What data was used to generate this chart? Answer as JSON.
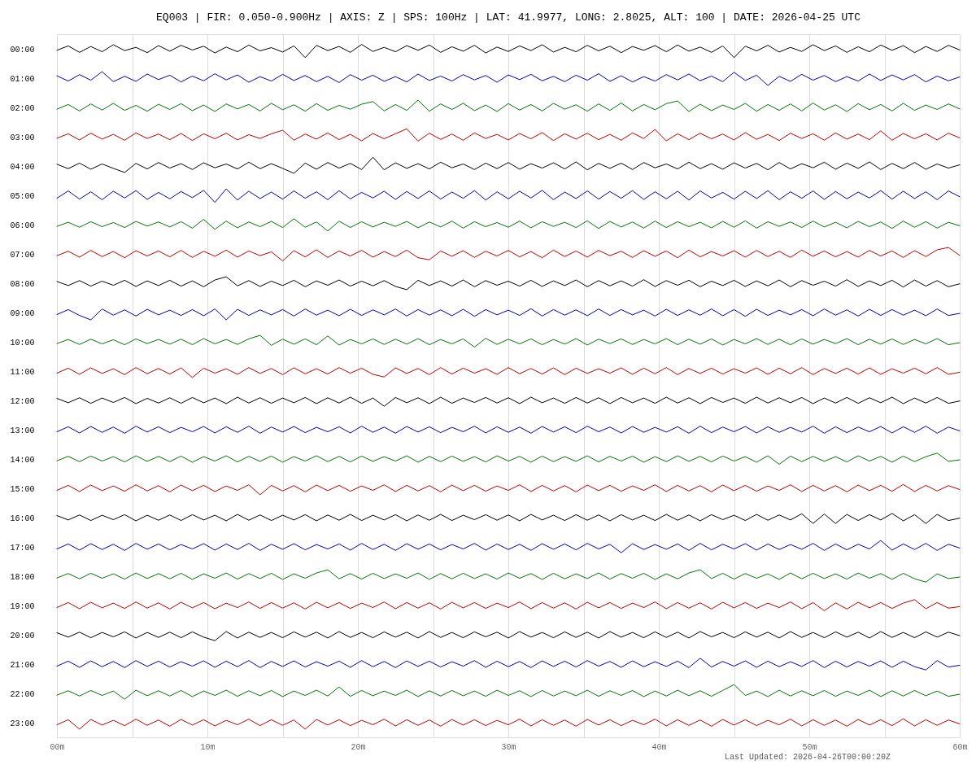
{
  "chart_data": {
    "type": "line",
    "title": "EQ003 | FIR: 0.050-0.900Hz | AXIS: Z | SPS: 100Hz | LAT: 41.9977, LONG: 2.8025, ALT: 100 | DATE: 2026-04-25 UTC",
    "annotations": [
      "Last Updated: 2026-04-26T00:00:20Z"
    ],
    "xlim": [
      0,
      60
    ],
    "xticks": [
      {
        "value": 0,
        "label": "00m"
      },
      {
        "value": 5,
        "label": null
      },
      {
        "value": 10,
        "label": "10m"
      },
      {
        "value": 15,
        "label": null
      },
      {
        "value": 20,
        "label": "20m"
      },
      {
        "value": 25,
        "label": null
      },
      {
        "value": 30,
        "label": "30m"
      },
      {
        "value": 35,
        "label": null
      },
      {
        "value": 40,
        "label": "40m"
      },
      {
        "value": 45,
        "label": null
      },
      {
        "value": 50,
        "label": "50m"
      },
      {
        "value": 55,
        "label": null
      },
      {
        "value": 60,
        "label": "60m"
      }
    ],
    "ylim": [
      23.5,
      -0.5
    ],
    "yticks": [
      {
        "value": 0,
        "label": "00:00"
      },
      {
        "value": 1,
        "label": "01:00"
      },
      {
        "value": 2,
        "label": "02:00"
      },
      {
        "value": 3,
        "label": "03:00"
      },
      {
        "value": 4,
        "label": "04:00"
      },
      {
        "value": 5,
        "label": "05:00"
      },
      {
        "value": 6,
        "label": "06:00"
      },
      {
        "value": 7,
        "label": "07:00"
      },
      {
        "value": 8,
        "label": "08:00"
      },
      {
        "value": 9,
        "label": "09:00"
      },
      {
        "value": 10,
        "label": "10:00"
      },
      {
        "value": 11,
        "label": "11:00"
      },
      {
        "value": 12,
        "label": "12:00"
      },
      {
        "value": 13,
        "label": "13:00"
      },
      {
        "value": 14,
        "label": "14:00"
      },
      {
        "value": 15,
        "label": "15:00"
      },
      {
        "value": 16,
        "label": "16:00"
      },
      {
        "value": 17,
        "label": "17:00"
      },
      {
        "value": 18,
        "label": "18:00"
      },
      {
        "value": 19,
        "label": "19:00"
      },
      {
        "value": 20,
        "label": "20:00"
      },
      {
        "value": 21,
        "label": "21:00"
      },
      {
        "value": 22,
        "label": "22:00"
      },
      {
        "value": 23,
        "label": "23:00"
      }
    ],
    "grid": "x",
    "x": [
      0,
      0.75,
      1.5,
      2.25,
      3,
      3.75,
      4.5,
      5.25,
      6,
      6.75,
      7.5,
      8.25,
      9,
      9.75,
      10.5,
      11.25,
      12,
      12.75,
      13.5,
      14.25,
      15,
      15.75,
      16.5,
      17.25,
      18,
      18.75,
      19.5,
      20.25,
      21,
      21.75,
      22.5,
      23.25,
      24,
      24.75,
      25.5,
      26.25,
      27,
      27.75,
      28.5,
      29.25,
      30,
      30.75,
      31.5,
      32.25,
      33,
      33.75,
      34.5,
      35.25,
      36,
      36.75,
      37.5,
      38.25,
      39,
      39.75,
      40.5,
      41.25,
      42,
      42.75,
      43.5,
      44.25,
      45,
      45.75,
      46.5,
      47.25,
      48,
      48.75,
      49.5,
      50.25,
      51,
      51.75,
      52.5,
      53.25,
      54,
      54.75,
      55.5,
      56.25,
      57,
      57.75,
      58.5,
      59.25,
      60
    ],
    "series": [
      {
        "color": "#000000",
        "values": [
          0.05,
          -0.1,
          0.12,
          -0.08,
          0.1,
          -0.14,
          0.06,
          -0.05,
          0.13,
          -0.11,
          0.08,
          -0.12,
          0.04,
          -0.09,
          0.14,
          -0.06,
          0.1,
          -0.13,
          0.07,
          -0.04,
          0.11,
          -0.1,
          0.3,
          -0.12,
          0.06,
          -0.08,
          0.12,
          -0.15,
          0.09,
          -0.05,
          0.1,
          -0.11,
          0.05,
          -0.13,
          0.12,
          -0.07,
          0.08,
          -0.12,
          0.14,
          -0.06,
          0.09,
          -0.1,
          0.06,
          -0.14,
          0.11,
          -0.05,
          0.1,
          -0.12,
          0.07,
          -0.09,
          0.13,
          -0.08,
          0.05,
          -0.11,
          0.1,
          -0.13,
          0.08,
          -0.06,
          0.12,
          -0.1,
          0.3,
          -0.09,
          0.07,
          -0.12,
          0.11,
          -0.05,
          0.09,
          -0.14,
          0.06,
          -0.1,
          0.12,
          -0.07,
          0.1,
          -0.13,
          0.05,
          -0.11,
          0.13,
          -0.08,
          0.09,
          -0.12,
          0.04
        ]
      },
      {
        "color": "#0000bb",
        "values": [
          0.92,
          1.1,
          0.88,
          1.07,
          0.78,
          1.12,
          0.94,
          1.11,
          0.86,
          1.05,
          0.9,
          1.13,
          0.93,
          1.09,
          0.85,
          1.06,
          0.89,
          1.14,
          0.95,
          1.1,
          0.87,
          1.08,
          0.91,
          1.12,
          0.94,
          1.15,
          0.88,
          1.07,
          0.9,
          1.11,
          0.95,
          1.13,
          0.86,
          1.08,
          0.93,
          1.1,
          0.88,
          1.06,
          0.91,
          1.14,
          0.89,
          1.05,
          0.87,
          1.09,
          0.94,
          1.12,
          0.9,
          1.07,
          0.85,
          1.11,
          0.92,
          1.13,
          0.95,
          1.1,
          0.88,
          1.06,
          0.86,
          1.09,
          0.93,
          1.12,
          0.8,
          1.08,
          0.9,
          1.25,
          0.94,
          1.11,
          0.87,
          1.07,
          0.91,
          1.12,
          0.95,
          1.1,
          0.86,
          1.08,
          0.89,
          1.06,
          0.88,
          1.13,
          0.93,
          1.09,
          0.96
        ]
      },
      {
        "color": "#007700",
        "values": [
          2.06,
          1.9,
          2.12,
          1.88,
          2.09,
          1.86,
          2.1,
          1.93,
          2.13,
          1.89,
          2.07,
          1.87,
          2.11,
          1.92,
          2.14,
          1.88,
          2.05,
          1.9,
          2.12,
          1.86,
          2.08,
          1.91,
          2.13,
          1.87,
          2.1,
          1.93,
          2.06,
          1.89,
          1.8,
          2.12,
          1.9,
          2.1,
          1.75,
          2.13,
          1.88,
          2.07,
          1.86,
          2.11,
          1.92,
          2.14,
          1.87,
          2.09,
          1.9,
          2.12,
          1.86,
          2.06,
          1.91,
          2.13,
          1.88,
          2.1,
          1.85,
          2.12,
          1.9,
          2.08,
          1.87,
          1.78,
          2.14,
          1.89,
          2.11,
          1.92,
          2.07,
          1.86,
          2.13,
          1.9,
          2.1,
          1.88,
          2.12,
          1.85,
          2.09,
          1.91,
          2.14,
          1.87,
          2.08,
          1.9,
          2.12,
          1.86,
          2.1,
          1.92,
          2.07,
          1.88,
          2.05
        ]
      },
      {
        "color": "#bb0000",
        "values": [
          3.05,
          2.9,
          3.11,
          2.88,
          3.08,
          2.92,
          3.12,
          2.87,
          3.06,
          2.91,
          3.1,
          2.89,
          3.13,
          2.9,
          3.07,
          2.88,
          3.11,
          2.93,
          3.06,
          2.9,
          2.78,
          3.12,
          2.91,
          3.08,
          2.87,
          3.1,
          2.92,
          3.14,
          2.89,
          3.07,
          2.9,
          2.73,
          3.15,
          2.88,
          3.09,
          2.91,
          3.12,
          2.87,
          3.06,
          2.92,
          3.11,
          2.89,
          3.07,
          2.86,
          3.13,
          2.9,
          3.08,
          2.88,
          3.1,
          2.92,
          3.12,
          2.87,
          3.06,
          2.75,
          3.14,
          2.9,
          3.1,
          2.88,
          3.07,
          2.91,
          3.11,
          2.86,
          3.09,
          2.92,
          3.13,
          2.88,
          3.06,
          2.9,
          3.12,
          2.87,
          3.08,
          2.91,
          3.1,
          2.8,
          3.12,
          2.89,
          3.07,
          2.9,
          3.11,
          2.88,
          3.04
        ]
      },
      {
        "color": "#000000",
        "values": [
          3.94,
          4.09,
          3.9,
          4.11,
          3.93,
          4.08,
          4.22,
          3.91,
          4.1,
          3.88,
          4.07,
          3.92,
          4.12,
          3.89,
          4.06,
          3.93,
          4.1,
          3.87,
          4.09,
          3.92,
          4.08,
          4.25,
          3.9,
          4.11,
          3.88,
          4.07,
          3.91,
          4.12,
          3.7,
          4.13,
          3.89,
          4.08,
          3.92,
          4.1,
          3.87,
          4.06,
          3.93,
          4.12,
          3.9,
          4.09,
          3.88,
          4.11,
          3.92,
          4.07,
          3.89,
          4.1,
          3.86,
          4.13,
          3.91,
          4.08,
          3.9,
          4.12,
          3.88,
          4.06,
          3.93,
          4.1,
          3.87,
          4.09,
          3.92,
          4.11,
          3.89,
          4.07,
          3.91,
          4.13,
          3.88,
          4.1,
          3.92,
          4.06,
          3.87,
          4.11,
          3.9,
          4.08,
          3.86,
          4.12,
          3.91,
          4.09,
          3.88,
          4.11,
          3.93,
          4.07,
          3.96
        ]
      },
      {
        "color": "#0000bb",
        "values": [
          5.1,
          4.85,
          5.13,
          4.88,
          5.15,
          4.86,
          5.09,
          4.84,
          5.14,
          4.9,
          5.12,
          4.87,
          5.08,
          4.83,
          5.24,
          4.78,
          5.16,
          4.86,
          5.11,
          4.89,
          5.13,
          4.85,
          5.1,
          4.88,
          5.15,
          4.84,
          5.12,
          4.9,
          5.09,
          4.86,
          5.14,
          4.87,
          5.11,
          4.85,
          5.13,
          4.89,
          5.1,
          4.84,
          5.16,
          4.88,
          5.12,
          4.86,
          5.09,
          4.83,
          5.15,
          4.89,
          5.11,
          4.85,
          5.13,
          4.87,
          5.1,
          4.84,
          5.14,
          4.88,
          5.12,
          4.86,
          5.16,
          4.85,
          5.09,
          4.9,
          5.13,
          4.86,
          5.11,
          4.84,
          5.15,
          4.88,
          5.1,
          4.85,
          5.14,
          4.87,
          5.12,
          4.89,
          5.09,
          4.84,
          5.13,
          4.86,
          5.11,
          4.88,
          5.15,
          4.85,
          5.05
        ]
      },
      {
        "color": "#007700",
        "values": [
          6.06,
          5.92,
          6.09,
          5.9,
          6.07,
          5.93,
          6.1,
          5.89,
          6.05,
          5.91,
          6.08,
          5.9,
          6.12,
          5.82,
          6.16,
          5.88,
          6.11,
          5.91,
          6.07,
          5.89,
          6.1,
          5.8,
          6.09,
          5.91,
          6.22,
          5.88,
          6.1,
          5.9,
          6.08,
          5.92,
          6.06,
          5.89,
          6.11,
          5.91,
          6.08,
          5.88,
          6.12,
          5.9,
          6.07,
          5.93,
          6.09,
          5.88,
          6.11,
          5.9,
          6.06,
          5.92,
          6.1,
          5.87,
          6.13,
          5.89,
          6.08,
          5.91,
          6.12,
          5.88,
          6.1,
          5.9,
          6.07,
          5.92,
          6.11,
          5.89,
          6.09,
          5.87,
          6.12,
          5.9,
          6.06,
          5.91,
          6.1,
          5.88,
          6.08,
          5.92,
          6.11,
          5.89,
          6.07,
          5.91,
          6.13,
          5.88,
          6.09,
          5.9,
          6.12,
          5.92,
          6.04
        ]
      },
      {
        "color": "#bb0000",
        "values": [
          7.06,
          6.91,
          7.11,
          6.88,
          7.09,
          6.92,
          7.13,
          6.89,
          7.07,
          6.9,
          7.1,
          6.88,
          7.12,
          6.91,
          7.08,
          6.87,
          7.11,
          6.9,
          7.06,
          6.93,
          7.24,
          6.89,
          7.1,
          6.86,
          7.12,
          6.9,
          7.07,
          6.88,
          7.11,
          6.92,
          7.09,
          6.87,
          7.13,
          7.2,
          6.9,
          7.08,
          6.89,
          7.12,
          6.91,
          7.07,
          6.88,
          7.1,
          6.92,
          7.13,
          6.87,
          7.09,
          6.9,
          7.11,
          6.88,
          7.06,
          6.91,
          7.12,
          6.89,
          7.08,
          6.9,
          7.13,
          6.87,
          7.1,
          6.92,
          7.07,
          6.89,
          7.11,
          6.88,
          7.09,
          6.91,
          7.12,
          6.87,
          7.08,
          6.9,
          7.1,
          6.92,
          7.11,
          6.88,
          7.07,
          6.9,
          7.12,
          6.89,
          7.09,
          6.86,
          6.78,
          7.05
        ]
      },
      {
        "color": "#000000",
        "values": [
          7.94,
          8.08,
          7.91,
          8.1,
          7.93,
          8.07,
          7.9,
          8.11,
          7.92,
          8.08,
          7.9,
          8.1,
          7.92,
          8.12,
          7.89,
          7.78,
          8.09,
          7.91,
          8.11,
          7.93,
          8.08,
          7.9,
          8.12,
          7.92,
          8.07,
          7.89,
          8.1,
          7.93,
          8.09,
          7.91,
          8.11,
          8.22,
          7.9,
          8.08,
          7.92,
          8.1,
          7.89,
          8.12,
          7.91,
          8.07,
          7.93,
          8.1,
          7.9,
          8.11,
          7.92,
          8.08,
          7.89,
          8.12,
          7.91,
          8.09,
          7.92,
          8.1,
          7.88,
          8.11,
          7.91,
          8.07,
          7.9,
          8.12,
          7.93,
          8.08,
          7.9,
          8.11,
          7.92,
          8.09,
          7.89,
          8.12,
          7.91,
          8.07,
          7.93,
          8.1,
          7.88,
          8.11,
          7.92,
          8.08,
          7.9,
          8.13,
          7.89,
          8.1,
          7.91,
          8.12,
          8.02
        ]
      },
      {
        "color": "#0000bb",
        "values": [
          9.07,
          8.9,
          9.1,
          9.25,
          8.88,
          9.09,
          8.91,
          9.12,
          8.89,
          9.08,
          8.92,
          9.1,
          8.9,
          9.11,
          8.88,
          9.25,
          8.89,
          9.1,
          8.91,
          9.08,
          8.9,
          9.12,
          8.88,
          9.09,
          8.92,
          9.11,
          8.89,
          9.1,
          8.91,
          9.08,
          8.88,
          9.12,
          8.9,
          9.09,
          8.91,
          9.11,
          8.89,
          9.13,
          8.9,
          9.08,
          8.92,
          9.1,
          8.87,
          9.12,
          8.9,
          9.09,
          8.91,
          9.11,
          8.88,
          9.1,
          8.9,
          9.08,
          8.92,
          9.12,
          8.89,
          9.1,
          8.91,
          9.09,
          8.88,
          9.11,
          8.9,
          9.13,
          8.89,
          9.1,
          8.92,
          9.08,
          8.9,
          9.11,
          8.88,
          9.09,
          8.91,
          9.12,
          8.89,
          9.1,
          8.9,
          9.09,
          8.92,
          9.11,
          8.88,
          9.1,
          9.03
        ]
      },
      {
        "color": "#007700",
        "values": [
          10.06,
          9.92,
          10.09,
          9.91,
          10.07,
          9.93,
          10.1,
          9.9,
          10.06,
          9.92,
          10.08,
          9.91,
          10.1,
          9.89,
          10.07,
          9.92,
          10.09,
          9.9,
          9.78,
          10.12,
          9.91,
          10.08,
          9.9,
          10.1,
          9.8,
          10.11,
          9.92,
          10.07,
          9.9,
          10.09,
          9.91,
          10.08,
          9.89,
          10.1,
          9.92,
          10.07,
          9.9,
          10.18,
          9.88,
          10.09,
          9.91,
          10.07,
          9.9,
          10.1,
          9.92,
          10.08,
          9.89,
          10.11,
          9.91,
          10.06,
          9.9,
          10.09,
          9.92,
          10.07,
          9.89,
          10.1,
          9.91,
          10.08,
          9.9,
          10.11,
          9.92,
          10.07,
          9.89,
          10.09,
          9.91,
          10.1,
          9.9,
          10.08,
          9.92,
          10.06,
          9.89,
          10.1,
          9.91,
          10.08,
          9.9,
          10.09,
          9.92,
          10.07,
          9.89,
          10.1,
          10.03
        ]
      },
      {
        "color": "#bb0000",
        "values": [
          11.07,
          10.9,
          11.11,
          10.89,
          11.08,
          10.92,
          11.12,
          10.88,
          11.09,
          10.91,
          11.1,
          10.89,
          11.22,
          10.9,
          11.07,
          10.92,
          11.11,
          10.88,
          11.08,
          10.91,
          11.12,
          10.89,
          11.09,
          10.92,
          11.1,
          10.88,
          11.07,
          10.9,
          11.11,
          11.2,
          10.89,
          11.08,
          10.91,
          11.12,
          10.88,
          11.1,
          10.9,
          11.07,
          10.92,
          11.11,
          10.88,
          11.09,
          10.91,
          11.1,
          10.89,
          11.12,
          10.9,
          11.08,
          10.92,
          11.07,
          10.89,
          11.11,
          10.9,
          11.09,
          10.88,
          11.12,
          10.91,
          11.08,
          10.9,
          11.1,
          10.92,
          11.07,
          10.89,
          11.11,
          10.9,
          11.09,
          10.88,
          11.12,
          10.91,
          11.08,
          10.9,
          11.1,
          10.89,
          11.11,
          10.92,
          11.07,
          10.9,
          11.09,
          10.88,
          11.11,
          11.04
        ]
      },
      {
        "color": "#000000",
        "values": [
          11.93,
          12.08,
          11.91,
          12.1,
          11.92,
          12.07,
          11.9,
          12.11,
          11.93,
          12.09,
          11.91,
          12.1,
          11.9,
          12.08,
          11.92,
          12.11,
          11.89,
          12.09,
          11.91,
          12.1,
          11.92,
          12.08,
          11.9,
          12.11,
          11.91,
          12.09,
          11.89,
          12.1,
          11.92,
          12.2,
          11.9,
          12.08,
          11.91,
          12.11,
          11.89,
          12.1,
          11.92,
          12.07,
          11.9,
          12.09,
          11.91,
          12.11,
          11.89,
          12.08,
          11.92,
          12.1,
          11.9,
          12.09,
          11.91,
          12.11,
          11.9,
          12.08,
          11.92,
          12.1,
          11.89,
          12.09,
          11.91,
          12.11,
          11.9,
          12.07,
          11.92,
          12.1,
          11.89,
          12.09,
          11.91,
          12.08,
          11.9,
          12.11,
          11.92,
          12.09,
          11.9,
          12.1,
          11.91,
          12.08,
          11.89,
          12.11,
          11.92,
          12.09,
          11.9,
          12.1,
          12.02
        ]
      },
      {
        "color": "#0000bb",
        "values": [
          13.07,
          12.9,
          13.11,
          12.89,
          13.09,
          12.91,
          13.12,
          12.88,
          13.08,
          12.9,
          13.1,
          12.92,
          13.07,
          12.89,
          13.11,
          12.9,
          13.09,
          12.88,
          13.12,
          12.91,
          13.08,
          12.89,
          13.1,
          12.92,
          13.07,
          12.9,
          13.11,
          12.88,
          13.09,
          12.91,
          13.12,
          12.89,
          13.08,
          12.9,
          13.1,
          12.92,
          13.07,
          12.88,
          13.11,
          12.9,
          13.09,
          12.91,
          13.12,
          12.89,
          13.08,
          12.9,
          13.1,
          12.88,
          13.07,
          12.91,
          13.11,
          12.89,
          13.09,
          12.92,
          13.08,
          12.9,
          13.12,
          12.88,
          13.1,
          12.91,
          13.07,
          12.89,
          13.11,
          12.9,
          13.09,
          12.92,
          13.08,
          12.88,
          13.12,
          12.9,
          13.1,
          12.91,
          13.07,
          12.89,
          13.11,
          12.9,
          13.09,
          12.88,
          13.12,
          12.91,
          13.04
        ]
      },
      {
        "color": "#007700",
        "values": [
          14.06,
          13.91,
          14.09,
          13.9,
          14.07,
          13.92,
          14.1,
          13.89,
          14.08,
          13.91,
          14.09,
          13.9,
          14.11,
          13.92,
          14.07,
          13.89,
          14.1,
          13.91,
          14.08,
          13.9,
          14.11,
          13.92,
          14.07,
          13.89,
          14.09,
          13.91,
          14.1,
          13.9,
          14.08,
          13.92,
          14.07,
          13.89,
          14.11,
          13.91,
          14.09,
          13.9,
          14.08,
          13.92,
          14.1,
          13.89,
          14.07,
          13.91,
          14.11,
          13.9,
          14.09,
          13.92,
          14.08,
          13.89,
          14.1,
          13.91,
          14.07,
          13.9,
          14.11,
          13.92,
          14.09,
          13.89,
          14.08,
          13.91,
          14.1,
          13.9,
          14.07,
          13.92,
          14.11,
          13.89,
          14.18,
          13.9,
          14.09,
          13.91,
          14.08,
          13.92,
          14.1,
          13.89,
          14.07,
          13.91,
          14.11,
          13.9,
          14.09,
          13.92,
          13.8,
          14.08,
          14.03
        ]
      },
      {
        "color": "#bb0000",
        "values": [
          15.07,
          14.9,
          15.11,
          14.89,
          15.08,
          14.92,
          15.1,
          14.88,
          15.09,
          14.91,
          15.12,
          14.89,
          15.08,
          14.9,
          15.11,
          14.92,
          15.07,
          14.88,
          15.22,
          14.9,
          15.09,
          14.91,
          15.12,
          14.89,
          15.08,
          14.9,
          15.1,
          14.92,
          15.07,
          14.88,
          15.11,
          14.9,
          15.09,
          14.91,
          15.12,
          14.89,
          15.08,
          14.9,
          15.1,
          14.92,
          15.07,
          14.88,
          15.11,
          14.9,
          15.09,
          14.91,
          15.12,
          14.89,
          15.08,
          14.9,
          15.1,
          14.92,
          15.07,
          14.88,
          15.11,
          14.9,
          15.09,
          14.91,
          15.12,
          14.89,
          15.08,
          14.9,
          15.1,
          14.92,
          15.07,
          14.88,
          15.11,
          14.9,
          15.09,
          14.91,
          15.12,
          14.89,
          15.08,
          14.9,
          15.1,
          14.87,
          15.11,
          14.9,
          15.09,
          14.91,
          15.04
        ]
      },
      {
        "color": "#000000",
        "values": [
          15.93,
          16.08,
          15.91,
          16.1,
          15.92,
          16.07,
          15.9,
          16.11,
          15.92,
          16.09,
          15.91,
          16.1,
          15.9,
          16.08,
          15.92,
          16.11,
          15.89,
          16.09,
          15.91,
          16.1,
          15.92,
          16.08,
          15.9,
          16.11,
          15.91,
          16.09,
          15.89,
          16.1,
          15.92,
          16.08,
          15.9,
          16.11,
          15.91,
          16.09,
          15.89,
          16.1,
          15.92,
          16.07,
          15.9,
          16.09,
          15.91,
          16.11,
          15.89,
          16.08,
          15.92,
          16.1,
          15.9,
          16.09,
          15.91,
          16.11,
          15.9,
          16.08,
          15.92,
          16.1,
          15.89,
          16.09,
          15.91,
          16.11,
          15.9,
          16.07,
          15.92,
          16.1,
          15.89,
          16.09,
          15.91,
          16.08,
          15.87,
          16.2,
          15.88,
          16.2,
          15.89,
          16.1,
          15.9,
          16.08,
          15.86,
          16.11,
          15.9,
          16.2,
          15.89,
          16.1,
          16.02
        ]
      },
      {
        "color": "#0000bb",
        "values": [
          17.07,
          16.9,
          17.11,
          16.89,
          17.09,
          16.91,
          17.12,
          16.88,
          17.08,
          16.9,
          17.1,
          16.92,
          17.07,
          16.89,
          17.11,
          16.9,
          17.09,
          16.88,
          17.12,
          16.91,
          17.08,
          16.89,
          17.1,
          16.92,
          17.07,
          16.9,
          17.11,
          16.88,
          17.09,
          16.91,
          17.12,
          16.89,
          17.08,
          16.9,
          17.1,
          16.92,
          17.07,
          16.88,
          17.11,
          16.9,
          17.09,
          16.91,
          17.12,
          16.89,
          17.08,
          16.9,
          17.1,
          16.88,
          17.07,
          16.91,
          17.2,
          16.89,
          17.09,
          16.92,
          17.08,
          16.9,
          17.12,
          16.88,
          17.1,
          16.91,
          17.07,
          16.89,
          17.11,
          16.9,
          17.09,
          16.92,
          17.08,
          16.88,
          17.12,
          16.9,
          17.1,
          16.91,
          17.07,
          16.78,
          17.11,
          16.9,
          17.09,
          16.88,
          17.12,
          16.91,
          17.04
        ]
      },
      {
        "color": "#007700",
        "values": [
          18.06,
          17.91,
          18.09,
          17.9,
          18.07,
          17.92,
          18.1,
          17.89,
          18.08,
          17.91,
          18.09,
          17.9,
          18.11,
          17.92,
          18.07,
          17.89,
          18.1,
          17.91,
          18.08,
          17.9,
          18.11,
          17.92,
          18.07,
          17.89,
          17.78,
          18.09,
          17.91,
          18.1,
          17.9,
          18.08,
          17.92,
          18.07,
          17.89,
          18.11,
          17.91,
          18.09,
          17.9,
          18.08,
          17.92,
          18.1,
          17.89,
          18.07,
          17.91,
          18.11,
          17.9,
          18.09,
          17.92,
          18.08,
          17.89,
          18.1,
          17.91,
          18.07,
          17.9,
          18.11,
          17.92,
          18.09,
          17.89,
          17.78,
          18.08,
          17.9,
          18.1,
          17.91,
          18.07,
          17.92,
          18.11,
          17.89,
          18.09,
          17.9,
          18.08,
          17.92,
          18.1,
          17.89,
          18.07,
          17.91,
          18.11,
          17.9,
          18.09,
          18.2,
          17.92,
          18.08,
          18.03
        ]
      },
      {
        "color": "#bb0000",
        "values": [
          19.07,
          18.9,
          19.11,
          18.89,
          19.08,
          18.92,
          19.1,
          18.88,
          19.09,
          18.91,
          19.12,
          18.89,
          19.08,
          18.9,
          19.11,
          18.92,
          19.07,
          18.88,
          19.1,
          18.9,
          19.09,
          18.91,
          19.12,
          18.89,
          19.08,
          18.9,
          19.1,
          18.92,
          19.07,
          18.88,
          19.11,
          18.9,
          19.09,
          18.91,
          19.12,
          18.89,
          19.08,
          18.9,
          19.1,
          18.92,
          19.07,
          18.88,
          19.11,
          18.9,
          19.09,
          18.91,
          19.12,
          18.89,
          19.08,
          18.9,
          19.1,
          18.92,
          19.07,
          18.88,
          19.11,
          18.9,
          19.09,
          18.91,
          19.12,
          18.89,
          19.08,
          18.9,
          19.1,
          18.92,
          19.07,
          18.88,
          19.11,
          18.9,
          19.18,
          18.91,
          19.12,
          18.89,
          19.08,
          18.9,
          19.1,
          18.92,
          18.8,
          19.11,
          18.9,
          19.09,
          19.04
        ]
      },
      {
        "color": "#000000",
        "values": [
          19.93,
          20.08,
          19.91,
          20.1,
          19.92,
          20.07,
          19.9,
          20.11,
          19.92,
          20.09,
          19.91,
          20.1,
          19.9,
          20.08,
          20.2,
          19.89,
          20.11,
          19.91,
          20.09,
          19.92,
          20.1,
          19.9,
          20.08,
          19.91,
          20.11,
          19.89,
          20.09,
          19.92,
          20.1,
          19.9,
          20.08,
          19.91,
          20.11,
          19.89,
          20.09,
          19.92,
          20.1,
          19.9,
          20.07,
          19.91,
          20.11,
          19.89,
          20.08,
          19.92,
          20.1,
          19.9,
          20.09,
          19.91,
          20.11,
          19.89,
          20.08,
          19.92,
          20.1,
          19.9,
          20.09,
          19.91,
          20.11,
          19.89,
          20.07,
          19.92,
          20.1,
          19.9,
          20.08,
          19.91,
          20.11,
          19.89,
          20.09,
          19.92,
          20.1,
          19.9,
          20.08,
          19.91,
          20.11,
          19.89,
          20.09,
          19.92,
          20.1,
          19.9,
          20.08,
          19.91,
          20.03
        ]
      },
      {
        "color": "#0000bb",
        "values": [
          21.07,
          20.9,
          21.11,
          20.89,
          21.09,
          20.91,
          21.12,
          20.88,
          21.08,
          20.9,
          21.1,
          20.92,
          21.07,
          20.89,
          21.11,
          20.9,
          21.09,
          20.88,
          21.12,
          20.91,
          21.08,
          20.89,
          21.1,
          20.92,
          21.07,
          20.9,
          21.11,
          20.88,
          21.09,
          20.91,
          21.12,
          20.89,
          21.08,
          20.9,
          21.1,
          20.92,
          21.07,
          20.88,
          21.11,
          20.9,
          21.09,
          20.91,
          21.12,
          20.89,
          21.08,
          20.9,
          21.1,
          20.88,
          21.07,
          20.91,
          21.11,
          20.89,
          21.09,
          20.92,
          21.08,
          20.9,
          21.12,
          20.8,
          21.1,
          20.91,
          21.07,
          20.89,
          21.11,
          20.9,
          21.09,
          20.92,
          21.08,
          20.88,
          21.12,
          20.9,
          21.1,
          20.91,
          21.07,
          20.89,
          21.11,
          20.9,
          21.09,
          21.2,
          20.88,
          21.1,
          21.04
        ]
      },
      {
        "color": "#007700",
        "values": [
          22.06,
          21.91,
          22.09,
          21.9,
          22.07,
          21.92,
          22.2,
          21.89,
          22.08,
          21.91,
          22.09,
          21.9,
          22.11,
          21.92,
          22.07,
          21.89,
          22.1,
          21.91,
          22.08,
          21.9,
          22.11,
          21.92,
          22.07,
          21.89,
          22.09,
          21.78,
          22.1,
          21.9,
          22.08,
          21.92,
          22.07,
          21.89,
          22.11,
          21.91,
          22.09,
          21.9,
          22.08,
          21.92,
          22.1,
          21.89,
          22.07,
          21.91,
          22.11,
          21.9,
          22.09,
          21.92,
          22.08,
          21.89,
          22.1,
          21.91,
          22.07,
          21.9,
          22.11,
          21.92,
          22.09,
          21.89,
          22.08,
          21.91,
          22.1,
          21.9,
          21.7,
          22.07,
          21.92,
          22.11,
          21.89,
          22.09,
          21.91,
          22.08,
          21.9,
          22.1,
          21.92,
          22.07,
          21.89,
          22.11,
          21.91,
          22.09,
          21.9,
          22.08,
          21.92,
          22.1,
          22.03
        ]
      },
      {
        "color": "#bb0000",
        "values": [
          23.07,
          22.9,
          23.22,
          22.89,
          23.08,
          22.92,
          23.1,
          22.88,
          23.09,
          22.91,
          23.12,
          22.89,
          23.08,
          22.9,
          23.11,
          22.92,
          23.07,
          22.88,
          23.1,
          22.9,
          23.09,
          22.91,
          23.22,
          22.89,
          23.08,
          22.9,
          23.1,
          22.92,
          23.07,
          22.88,
          23.11,
          22.9,
          23.09,
          22.91,
          23.12,
          22.89,
          23.08,
          22.9,
          23.1,
          22.92,
          23.07,
          22.88,
          23.11,
          22.9,
          23.09,
          22.91,
          23.12,
          22.89,
          23.08,
          22.9,
          23.1,
          22.92,
          23.07,
          22.88,
          23.11,
          22.9,
          23.09,
          22.91,
          23.12,
          22.89,
          23.08,
          22.9,
          23.1,
          22.92,
          23.07,
          22.88,
          23.11,
          22.9,
          23.09,
          22.91,
          23.12,
          22.89,
          23.08,
          22.9,
          23.1,
          22.87,
          23.11,
          22.9,
          23.09,
          22.91,
          23.04
        ]
      }
    ]
  }
}
